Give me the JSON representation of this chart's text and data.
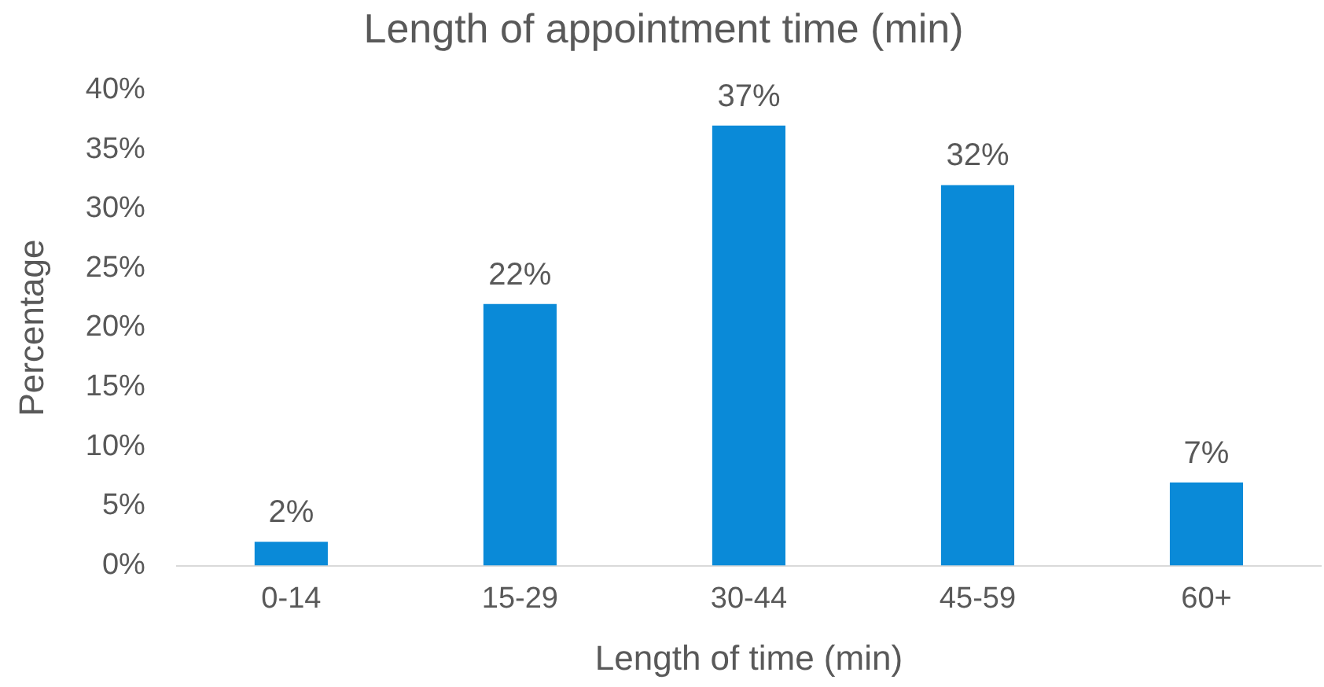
{
  "chart_data": {
    "type": "bar",
    "title": "Length of appointment time (min)",
    "xlabel": "Length of time (min)",
    "ylabel": "Percentage",
    "categories": [
      "0-14",
      "15-29",
      "30-44",
      "45-59",
      "60+"
    ],
    "values": [
      2,
      22,
      37,
      32,
      7
    ],
    "color": "#0a8ad8",
    "value_labels": [
      "2%",
      "22%",
      "37%",
      "32%",
      "7%"
    ],
    "ylim": [
      0,
      40
    ],
    "yticks": [
      {
        "value": 0,
        "label": "0%"
      },
      {
        "value": 5,
        "label": "5%"
      },
      {
        "value": 10,
        "label": "10%"
      },
      {
        "value": 15,
        "label": "15%"
      },
      {
        "value": 20,
        "label": "20%"
      },
      {
        "value": 25,
        "label": "25%"
      },
      {
        "value": 30,
        "label": "30%"
      },
      {
        "value": 35,
        "label": "35%"
      },
      {
        "value": 40,
        "label": "40%"
      }
    ],
    "grid": false,
    "legend": false
  }
}
